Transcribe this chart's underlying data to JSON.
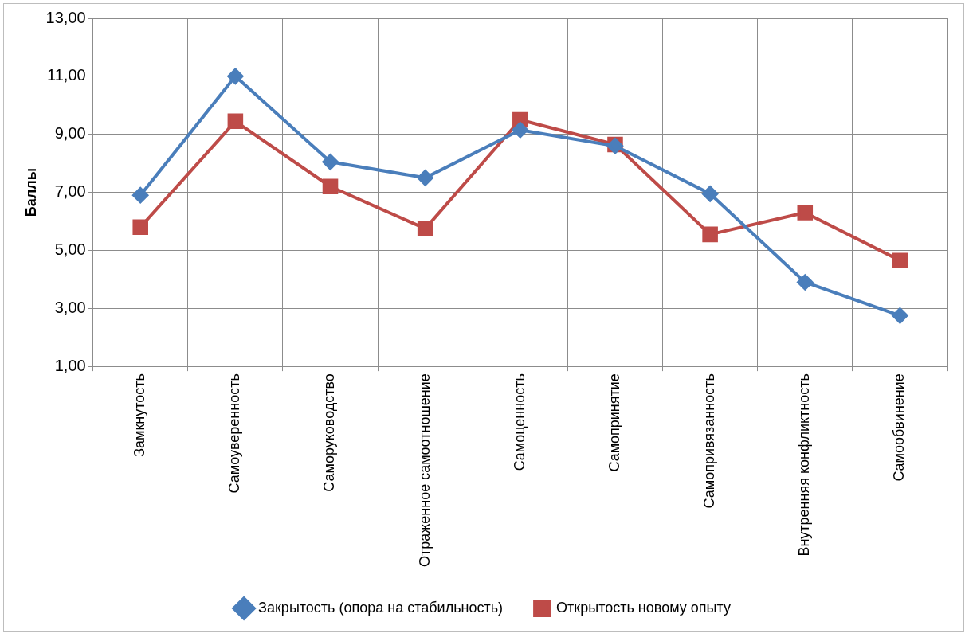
{
  "chart_data": {
    "type": "line",
    "ylabel": "Баллы",
    "categories": [
      "Замкнутость",
      "Самоуверенность",
      "Саморуководство",
      "Отраженное самоотношение",
      "Самоценность",
      "Самопринятие",
      "Самопривязанность",
      "Внутренняя конфликтность",
      "Самообвинение"
    ],
    "series": [
      {
        "name": "Закрытость (опора на стабильность)",
        "color": "#4a7ebb",
        "marker": "diamond",
        "values": [
          6.9,
          11.0,
          8.05,
          7.5,
          9.15,
          8.6,
          6.95,
          3.9,
          2.75
        ]
      },
      {
        "name": "Открытость новому опыту",
        "color": "#be4b48",
        "marker": "square",
        "values": [
          5.8,
          9.45,
          7.2,
          5.75,
          9.5,
          8.65,
          5.55,
          6.3,
          4.65
        ]
      }
    ],
    "ylim": [
      1,
      13
    ],
    "yticks": [
      {
        "value": 1,
        "label": "1,00"
      },
      {
        "value": 3,
        "label": "3,00"
      },
      {
        "value": 5,
        "label": "5,00"
      },
      {
        "value": 7,
        "label": "7,00"
      },
      {
        "value": 9,
        "label": "9,00"
      },
      {
        "value": 11,
        "label": "11,00"
      },
      {
        "value": 13,
        "label": "13,00"
      }
    ],
    "grid": true,
    "legend": "bottom",
    "line_style": "solid"
  }
}
